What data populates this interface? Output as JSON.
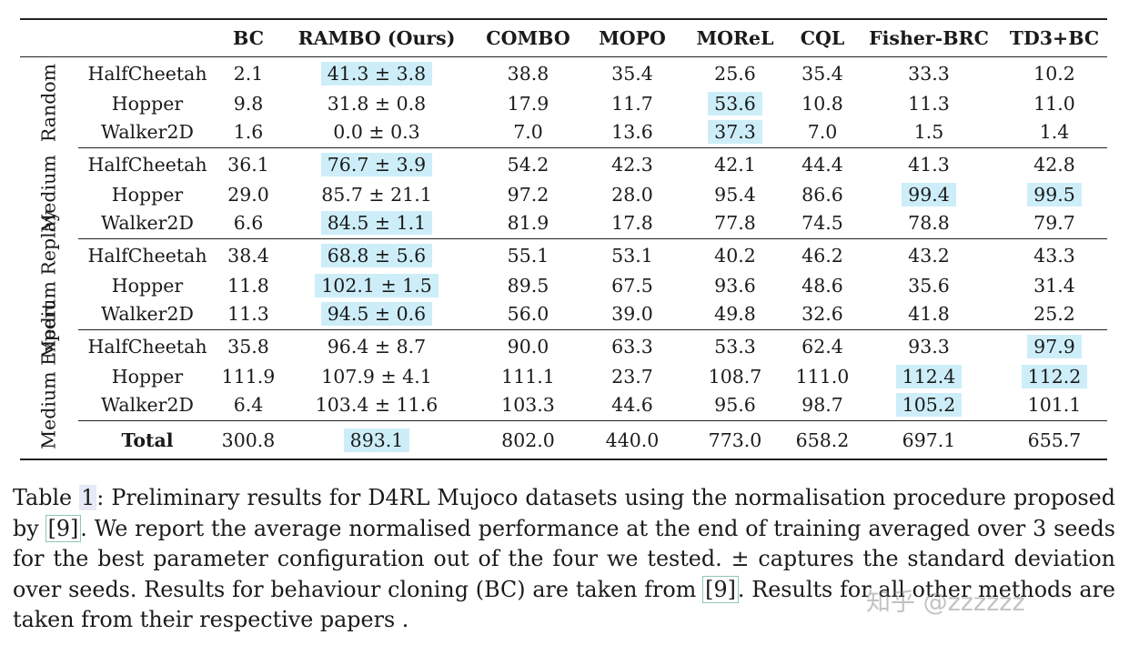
{
  "table": {
    "headers": [
      "BC",
      "RAMBO (Ours)",
      "COMBO",
      "MOPO",
      "MOReL",
      "CQL",
      "Fisher-BRC",
      "TD3+BC"
    ],
    "groups": [
      {
        "label": "Random",
        "rows": [
          {
            "env": "HalfCheetah",
            "cells": [
              "2.1",
              "41.3 ± 3.8",
              "38.8",
              "35.4",
              "25.6",
              "35.4",
              "33.3",
              "10.2"
            ]
          },
          {
            "env": "Hopper",
            "cells": [
              "9.8",
              "31.8 ± 0.8",
              "17.9",
              "11.7",
              "53.6",
              "10.8",
              "11.3",
              "11.0"
            ]
          },
          {
            "env": "Walker2D",
            "cells": [
              "1.6",
              "0.0 ± 0.3",
              "7.0",
              "13.6",
              "37.3",
              "7.0",
              "1.5",
              "1.4"
            ]
          }
        ]
      },
      {
        "label": "Medium",
        "rows": [
          {
            "env": "HalfCheetah",
            "cells": [
              "36.1",
              "76.7 ± 3.9",
              "54.2",
              "42.3",
              "42.1",
              "44.4",
              "41.3",
              "42.8"
            ]
          },
          {
            "env": "Hopper",
            "cells": [
              "29.0",
              "85.7 ± 21.1",
              "97.2",
              "28.0",
              "95.4",
              "86.6",
              "99.4",
              "99.5"
            ]
          },
          {
            "env": "Walker2D",
            "cells": [
              "6.6",
              "84.5 ± 1.1",
              "81.9",
              "17.8",
              "77.8",
              "74.5",
              "78.8",
              "79.7"
            ]
          }
        ]
      },
      {
        "label": "Medium Replay",
        "rows": [
          {
            "env": "HalfCheetah",
            "cells": [
              "38.4",
              "68.8 ± 5.6",
              "55.1",
              "53.1",
              "40.2",
              "46.2",
              "43.2",
              "43.3"
            ]
          },
          {
            "env": "Hopper",
            "cells": [
              "11.8",
              "102.1 ± 1.5",
              "89.5",
              "67.5",
              "93.6",
              "48.6",
              "35.6",
              "31.4"
            ]
          },
          {
            "env": "Walker2D",
            "cells": [
              "11.3",
              "94.5 ± 0.6",
              "56.0",
              "39.0",
              "49.8",
              "32.6",
              "41.8",
              "25.2"
            ]
          }
        ]
      },
      {
        "label": "Medium Expert",
        "rows": [
          {
            "env": "HalfCheetah",
            "cells": [
              "35.8",
              "96.4 ± 8.7",
              "90.0",
              "63.3",
              "53.3",
              "62.4",
              "93.3",
              "97.9"
            ]
          },
          {
            "env": "Hopper",
            "cells": [
              "111.9",
              "107.9 ± 4.1",
              "111.1",
              "23.7",
              "108.7",
              "111.0",
              "112.4",
              "112.2"
            ]
          },
          {
            "env": "Walker2D",
            "cells": [
              "6.4",
              "103.4 ± 11.6",
              "103.3",
              "44.6",
              "95.6",
              "98.7",
              "105.2",
              "101.1"
            ]
          }
        ]
      }
    ],
    "total": {
      "label": "Total",
      "cells": [
        "300.8",
        "893.1",
        "802.0",
        "440.0",
        "773.0",
        "658.2",
        "697.1",
        "655.7"
      ]
    },
    "highlighted_cells": [
      "0-0-1",
      "0-1-4",
      "0-2-4",
      "1-0-1",
      "1-1-6",
      "1-1-7",
      "1-2-1",
      "2-0-1",
      "2-1-1",
      "2-2-1",
      "3-0-7",
      "3-1-6",
      "3-1-7",
      "3-2-6",
      "total-1"
    ],
    "highlight_color": "#cdeef9"
  },
  "caption": {
    "p1": "Table ",
    "table_ref": "1",
    "p2": ": Preliminary results for D4RL Mujoco datasets using the normalisation procedure proposed by ",
    "cite1": "[9]",
    "p3": ". We report the average normalised performance at the end of training averaged over 3 seeds for the best parameter configuration out of the four we tested. ± captures the standard deviation over seeds. Results for behaviour cloning (BC) are taken from ",
    "cite2": "[9]",
    "p4": ". Results for all other methods are taken from their respective papers ."
  },
  "watermark": "知乎 @zzzzzz"
}
